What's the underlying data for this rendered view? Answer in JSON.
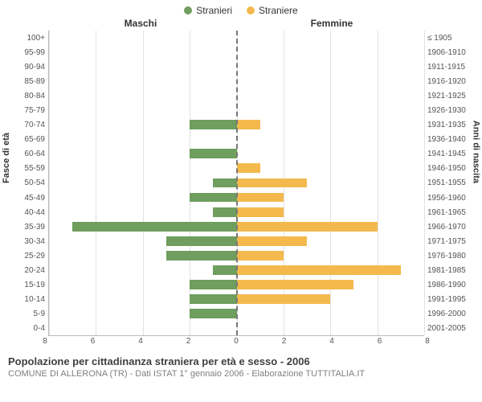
{
  "legend": {
    "male": {
      "label": "Stranieri",
      "color": "#6f9e5e"
    },
    "female": {
      "label": "Straniere",
      "color": "#f4b94d"
    }
  },
  "headers": {
    "male": "Maschi",
    "female": "Femmine"
  },
  "ylabels": {
    "left": "Fasce di età",
    "right": "Anni di nascita"
  },
  "axis": {
    "max": 8,
    "ticks_male": [
      8,
      6,
      4,
      2,
      0
    ],
    "ticks_female": [
      0,
      2,
      4,
      6,
      8
    ],
    "grid_color": "#e2e2e2",
    "center_color": "#777777"
  },
  "background_color": "#ffffff",
  "rows": [
    {
      "age": "100+",
      "birth": "≤ 1905",
      "m": 0,
      "f": 0
    },
    {
      "age": "95-99",
      "birth": "1906-1910",
      "m": 0,
      "f": 0
    },
    {
      "age": "90-94",
      "birth": "1911-1915",
      "m": 0,
      "f": 0
    },
    {
      "age": "85-89",
      "birth": "1916-1920",
      "m": 0,
      "f": 0
    },
    {
      "age": "80-84",
      "birth": "1921-1925",
      "m": 0,
      "f": 0
    },
    {
      "age": "75-79",
      "birth": "1926-1930",
      "m": 0,
      "f": 0
    },
    {
      "age": "70-74",
      "birth": "1931-1935",
      "m": 2,
      "f": 1
    },
    {
      "age": "65-69",
      "birth": "1936-1940",
      "m": 0,
      "f": 0
    },
    {
      "age": "60-64",
      "birth": "1941-1945",
      "m": 2,
      "f": 0
    },
    {
      "age": "55-59",
      "birth": "1946-1950",
      "m": 0,
      "f": 1
    },
    {
      "age": "50-54",
      "birth": "1951-1955",
      "m": 1,
      "f": 3
    },
    {
      "age": "45-49",
      "birth": "1956-1960",
      "m": 2,
      "f": 2
    },
    {
      "age": "40-44",
      "birth": "1961-1965",
      "m": 1,
      "f": 2
    },
    {
      "age": "35-39",
      "birth": "1966-1970",
      "m": 7,
      "f": 6
    },
    {
      "age": "30-34",
      "birth": "1971-1975",
      "m": 3,
      "f": 3
    },
    {
      "age": "25-29",
      "birth": "1976-1980",
      "m": 3,
      "f": 2
    },
    {
      "age": "20-24",
      "birth": "1981-1985",
      "m": 1,
      "f": 7
    },
    {
      "age": "15-19",
      "birth": "1986-1990",
      "m": 2,
      "f": 5
    },
    {
      "age": "10-14",
      "birth": "1991-1995",
      "m": 2,
      "f": 4
    },
    {
      "age": "5-9",
      "birth": "1996-2000",
      "m": 2,
      "f": 0
    },
    {
      "age": "0-4",
      "birth": "2001-2005",
      "m": 0,
      "f": 0
    }
  ],
  "caption": {
    "title": "Popolazione per cittadinanza straniera per età e sesso - 2006",
    "subtitle": "COMUNE DI ALLERONA (TR) - Dati ISTAT 1° gennaio 2006 - Elaborazione TUTTITALIA.IT"
  }
}
